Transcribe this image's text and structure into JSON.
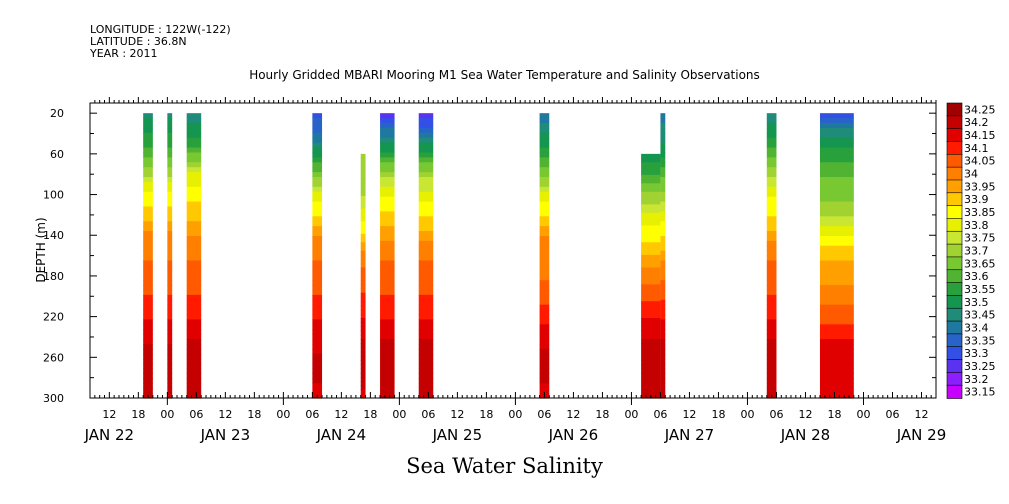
{
  "header": {
    "longitude": "LONGITUDE : 122W(-122)",
    "latitude": "LATITUDE : 36.8N",
    "year": "YEAR : 2011"
  },
  "chart_data": {
    "type": "heatmap",
    "title": "Hourly Gridded MBARI Mooring M1 Sea Water Temperature and Salinity Observations",
    "xlabel": "Sea Water Salinity",
    "ylabel": "DEPTH (m)",
    "ylim": [
      300,
      10
    ],
    "y_ticks": [
      20,
      60,
      100,
      140,
      180,
      220,
      260,
      300
    ],
    "x_ticks": [
      {
        "hour": 12,
        "label": "12"
      },
      {
        "hour": 18,
        "label": "18"
      },
      {
        "hour": 24,
        "label": "00"
      },
      {
        "hour": 30,
        "label": "06"
      },
      {
        "hour": 36,
        "label": "12"
      },
      {
        "hour": 42,
        "label": "18"
      },
      {
        "hour": 48,
        "label": "00"
      },
      {
        "hour": 54,
        "label": "06"
      },
      {
        "hour": 60,
        "label": "12"
      },
      {
        "hour": 66,
        "label": "18"
      },
      {
        "hour": 72,
        "label": "00"
      },
      {
        "hour": 78,
        "label": "06"
      },
      {
        "hour": 84,
        "label": "12"
      },
      {
        "hour": 90,
        "label": "18"
      },
      {
        "hour": 96,
        "label": "00"
      },
      {
        "hour": 102,
        "label": "06"
      },
      {
        "hour": 108,
        "label": "12"
      },
      {
        "hour": 114,
        "label": "18"
      },
      {
        "hour": 120,
        "label": "00"
      },
      {
        "hour": 126,
        "label": "06"
      },
      {
        "hour": 132,
        "label": "12"
      },
      {
        "hour": 138,
        "label": "18"
      },
      {
        "hour": 144,
        "label": "00"
      },
      {
        "hour": 150,
        "label": "06"
      },
      {
        "hour": 156,
        "label": "12"
      },
      {
        "hour": 162,
        "label": "18"
      },
      {
        "hour": 168,
        "label": "00"
      },
      {
        "hour": 174,
        "label": "06"
      },
      {
        "hour": 180,
        "label": "12"
      }
    ],
    "day_labels": [
      {
        "hour": 12,
        "label": "JAN 22"
      },
      {
        "hour": 36,
        "label": "JAN 23"
      },
      {
        "hour": 60,
        "label": "JAN 24"
      },
      {
        "hour": 84,
        "label": "JAN 25"
      },
      {
        "hour": 108,
        "label": "JAN 26"
      },
      {
        "hour": 132,
        "label": "JAN 27"
      },
      {
        "hour": 156,
        "label": "JAN 28"
      },
      {
        "hour": 180,
        "label": "JAN 29"
      }
    ],
    "legend_levels": [
      "34.25",
      "34.2",
      "34.15",
      "34.1",
      "34.05",
      "34",
      "33.95",
      "33.9",
      "33.85",
      "33.8",
      "33.75",
      "33.7",
      "33.65",
      "33.6",
      "33.55",
      "33.5",
      "33.45",
      "33.4",
      "33.35",
      "33.3",
      "33.25",
      "33.2",
      "33.15"
    ],
    "legend_colors": [
      "#a00000",
      "#c40000",
      "#e00000",
      "#ff1a00",
      "#ff5a00",
      "#ff8000",
      "#ffa000",
      "#ffc800",
      "#ffff00",
      "#e6f000",
      "#c8e632",
      "#a0d232",
      "#78c832",
      "#50b432",
      "#28a03c",
      "#149650",
      "#1e8c78",
      "#1e78a0",
      "#2864c8",
      "#3250e6",
      "#5a32f0",
      "#8c1eff",
      "#c800ff"
    ],
    "columns": [
      {
        "start": 19,
        "end": 21,
        "top": 20,
        "sal": [
          33.45,
          33.52,
          33.6,
          33.72,
          33.83,
          33.9,
          34.0,
          34.02,
          34.05,
          34.08,
          34.12,
          34.15,
          34.22,
          34.2,
          34.2
        ]
      },
      {
        "start": 24,
        "end": 25,
        "top": 20,
        "sal": [
          33.45,
          33.52,
          33.6,
          33.72,
          33.83,
          33.9,
          34.0,
          34.02,
          34.05,
          34.08,
          34.12,
          34.15,
          34.22,
          34.2,
          34.2
        ]
      },
      {
        "start": 28,
        "end": 31,
        "top": 20,
        "sal": [
          33.45,
          33.5,
          33.62,
          33.78,
          33.86,
          33.9,
          33.98,
          34.02,
          34.04,
          34.08,
          34.12,
          34.17,
          34.22,
          34.22,
          34.2
        ]
      },
      {
        "start": 54,
        "end": 56,
        "top": 20,
        "sal": [
          33.3,
          33.38,
          33.5,
          33.65,
          33.78,
          33.88,
          33.98,
          34.02,
          34.04,
          34.08,
          34.12,
          34.15,
          34.18,
          34.18,
          34.15
        ]
      },
      {
        "start": 64,
        "end": 65,
        "top": 60,
        "sal": [
          33.7,
          33.7,
          33.7,
          33.7,
          33.72,
          33.8,
          33.88,
          34.0,
          34.04,
          34.08,
          34.12,
          34.17,
          34.22,
          34.2,
          34.15
        ]
      },
      {
        "start": 68,
        "end": 71,
        "top": 20,
        "sal": [
          33.25,
          33.4,
          33.55,
          33.7,
          33.82,
          33.88,
          33.95,
          34.02,
          34.05,
          34.08,
          34.12,
          34.17,
          34.22,
          34.2,
          34.18
        ]
      },
      {
        "start": 76,
        "end": 79,
        "top": 20,
        "sal": [
          33.22,
          33.38,
          33.55,
          33.7,
          33.8,
          33.86,
          33.95,
          34.02,
          34.05,
          34.08,
          34.12,
          34.17,
          34.2,
          34.2,
          34.18
        ]
      },
      {
        "start": 101,
        "end": 103,
        "top": 20,
        "sal": [
          33.38,
          33.48,
          33.55,
          33.65,
          33.78,
          33.88,
          33.98,
          34.02,
          34.02,
          34.05,
          34.1,
          34.15,
          34.2,
          34.18,
          34.15
        ]
      },
      {
        "start": 122,
        "end": 126,
        "top": 60,
        "sal": [
          33.5,
          33.5,
          33.5,
          33.58,
          33.68,
          33.78,
          33.86,
          33.92,
          34.0,
          34.06,
          34.12,
          34.17,
          34.2,
          34.2,
          34.18
        ]
      },
      {
        "start": 126,
        "end": 127,
        "top": 20,
        "sal": [
          33.4,
          33.45,
          33.52,
          33.6,
          33.7,
          33.8,
          33.88,
          33.95,
          34.02,
          34.06,
          34.12,
          34.17,
          34.2,
          34.2,
          34.18
        ]
      },
      {
        "start": 148,
        "end": 150,
        "top": 20,
        "sal": [
          33.45,
          33.5,
          33.6,
          33.7,
          33.82,
          33.86,
          33.95,
          34.02,
          34.04,
          34.08,
          34.12,
          34.17,
          34.22,
          34.2,
          34.2
        ]
      },
      {
        "start": 159,
        "end": 166,
        "top": 20,
        "sal": [
          33.3,
          33.45,
          33.55,
          33.62,
          33.65,
          33.72,
          33.82,
          33.92,
          33.96,
          34.0,
          34.05,
          34.12,
          34.15,
          34.15,
          34.15
        ]
      }
    ]
  }
}
